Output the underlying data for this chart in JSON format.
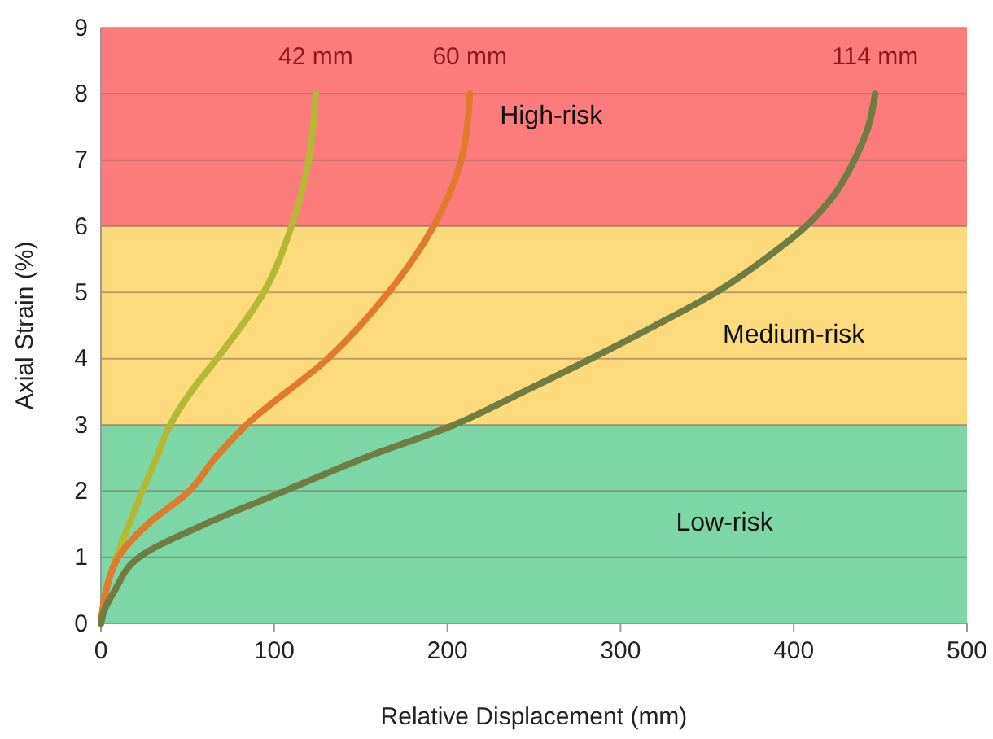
{
  "chart_data": {
    "type": "line",
    "xlabel": "Relative Displacement (mm)",
    "ylabel": "Axial Strain (%)",
    "xlim": [
      0,
      500
    ],
    "xticks": [
      0,
      100,
      200,
      300,
      400,
      500
    ],
    "ylim": [
      0,
      9
    ],
    "yticks": [
      0,
      1,
      2,
      3,
      4,
      5,
      6,
      7,
      8,
      9
    ],
    "grid": "y",
    "legend": false,
    "line_style": "solid",
    "marker": "none",
    "bands": [
      {
        "axis": "y",
        "from": 0,
        "to": 3,
        "label": "Low-risk",
        "color": "#7dd6a6"
      },
      {
        "axis": "y",
        "from": 3,
        "to": 6,
        "label": "Medium-risk",
        "color": "#fddb7c"
      },
      {
        "axis": "y",
        "from": 6,
        "to": 9,
        "label": "High-risk",
        "color": "#fc7c7c"
      }
    ],
    "series": [
      {
        "name": "42 mm",
        "color": "#b5b834",
        "x": [
          0,
          3,
          9,
          24,
          32,
          40,
          52,
          67,
          94,
          110,
          120,
          124
        ],
        "values": [
          0,
          0.5,
          1,
          2,
          2.5,
          3,
          3.5,
          4,
          5,
          6,
          7,
          8
        ]
      },
      {
        "name": "60 mm",
        "color": "#e07a2c",
        "x": [
          0,
          3,
          10,
          27,
          51,
          66,
          84,
          131,
          166,
          192,
          208,
          213
        ],
        "values": [
          0,
          0.5,
          1,
          1.5,
          2,
          2.5,
          3,
          4,
          5,
          6,
          7,
          8
        ]
      },
      {
        "name": "114 mm",
        "color": "#6f7d42",
        "x": [
          0,
          2,
          8,
          22,
          60,
          106,
          152,
          204,
          244,
          283,
          320,
          355,
          383,
          407,
          424,
          435,
          443,
          447
        ],
        "values": [
          0,
          0.2,
          0.5,
          1,
          1.5,
          2,
          2.5,
          3,
          3.5,
          4,
          4.5,
          5,
          5.5,
          6,
          6.5,
          7,
          7.5,
          8
        ]
      }
    ]
  }
}
